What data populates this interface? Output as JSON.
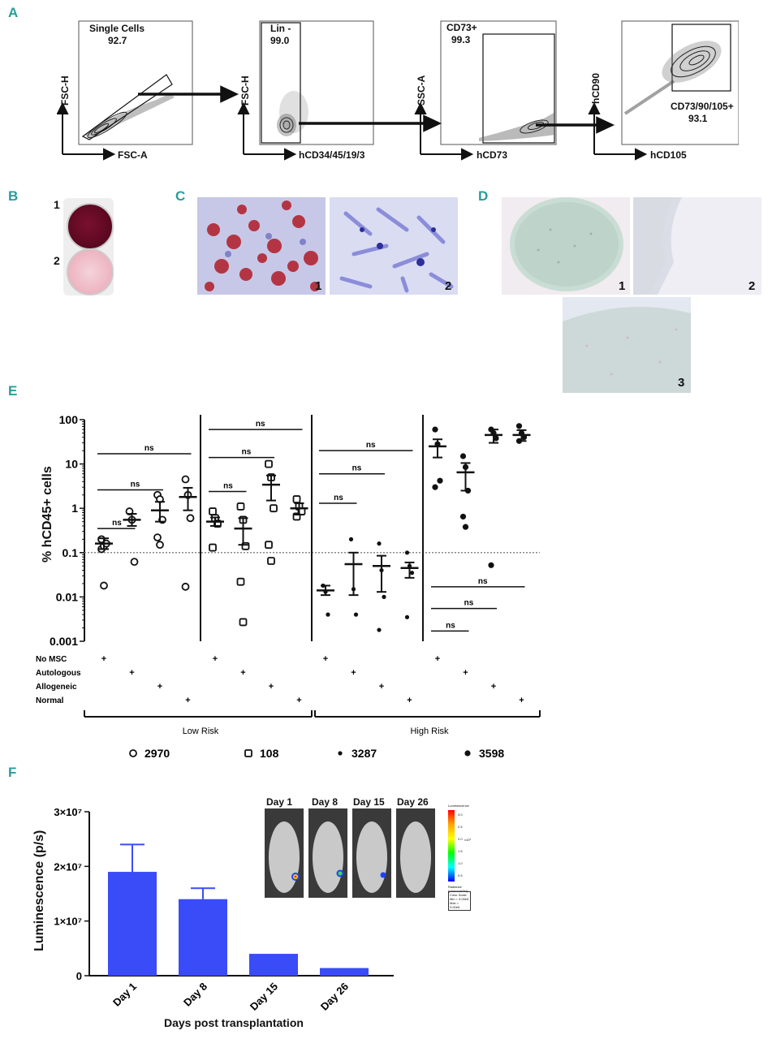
{
  "panels": {
    "A": "A",
    "B": "B",
    "C": "C",
    "D": "D",
    "E": "E",
    "F": "F"
  },
  "panelA": {
    "plots": [
      {
        "gate": "Single Cells",
        "pct": "92.7",
        "y_label": "FSC-H",
        "x_label": "FSC-A"
      },
      {
        "gate": "Lin -",
        "pct": "99.0",
        "y_label": "FSC-H",
        "x_label": "hCD34/45/19/3"
      },
      {
        "gate": "CD73+",
        "pct": "99.3",
        "y_label": "SSC-A",
        "x_label": "hCD73"
      },
      {
        "gate": "CD73/90/105+",
        "pct": "93.1",
        "y_label": "hCD90",
        "x_label": "hCD105"
      }
    ]
  },
  "panelB": {
    "labels": [
      "1",
      "2"
    ]
  },
  "panelC": {
    "labels": [
      "1",
      "2"
    ]
  },
  "panelD": {
    "labels": [
      "1",
      "2",
      "3"
    ]
  },
  "panelE": {
    "chart_data": {
      "type": "scatter",
      "ylabel": "% hCD45+ cells",
      "yscale": "log",
      "ylim": [
        0.001,
        100
      ],
      "yticks": [
        "0.001",
        "0.01",
        "0.1",
        "1",
        "10",
        "100"
      ],
      "threshold": 0.1,
      "groups": [
        {
          "patient": "2970",
          "risk": "Low Risk",
          "marker": "open-circle",
          "conditions": [
            {
              "condition": "No MSC",
              "mean": 0.16,
              "sem_low": 0.12,
              "sem_high": 0.21,
              "points": [
                0.12,
                0.14,
                0.16,
                0.2,
                0.018
              ]
            },
            {
              "condition": "Autologous",
              "mean": 0.55,
              "sem_low": 0.4,
              "sem_high": 0.75,
              "points": [
                0.85,
                0.55,
                0.062
              ]
            },
            {
              "condition": "Allogeneic",
              "mean": 0.9,
              "sem_low": 0.5,
              "sem_high": 1.4,
              "points": [
                2.0,
                1.6,
                0.55,
                0.22,
                0.15
              ]
            },
            {
              "condition": "Normal",
              "mean": 1.8,
              "sem_low": 0.9,
              "sem_high": 2.9,
              "points": [
                4.5,
                2.0,
                0.6,
                0.017
              ]
            }
          ]
        },
        {
          "patient": "108",
          "risk": "Low Risk",
          "marker": "open-square",
          "conditions": [
            {
              "condition": "No MSC",
              "mean": 0.5,
              "sem_low": 0.4,
              "sem_high": 0.62,
              "points": [
                0.85,
                0.6,
                0.45,
                0.13
              ]
            },
            {
              "condition": "Autologous",
              "mean": 0.35,
              "sem_low": 0.15,
              "sem_high": 0.6,
              "points": [
                1.1,
                0.55,
                0.14,
                0.022,
                0.0027
              ]
            },
            {
              "condition": "Allogeneic",
              "mean": 3.4,
              "sem_low": 1.5,
              "sem_high": 5.5,
              "points": [
                10,
                5,
                1.0,
                0.15,
                0.065
              ]
            },
            {
              "condition": "Normal",
              "mean": 1.0,
              "sem_low": 0.72,
              "sem_high": 1.3,
              "points": [
                1.6,
                1.1,
                0.85,
                0.65
              ]
            }
          ]
        },
        {
          "patient": "3287",
          "risk": "High Risk",
          "marker": "small-dot",
          "conditions": [
            {
              "condition": "No MSC",
              "mean": 0.014,
              "sem_low": 0.011,
              "sem_high": 0.018,
              "points": [
                0.018,
                0.013,
                0.004
              ]
            },
            {
              "condition": "Autologous",
              "mean": 0.055,
              "sem_low": 0.011,
              "sem_high": 0.1,
              "points": [
                0.2,
                0.015,
                0.004
              ]
            },
            {
              "condition": "Allogeneic",
              "mean": 0.05,
              "sem_low": 0.013,
              "sem_high": 0.085,
              "points": [
                0.16,
                0.04,
                0.01,
                0.0018
              ]
            },
            {
              "condition": "Normal",
              "mean": 0.045,
              "sem_low": 0.027,
              "sem_high": 0.06,
              "points": [
                0.1,
                0.05,
                0.035,
                0.0035
              ]
            }
          ]
        },
        {
          "patient": "3598",
          "risk": "High Risk",
          "marker": "filled-dot",
          "conditions": [
            {
              "condition": "No MSC",
              "mean": 25,
              "sem_low": 14,
              "sem_high": 36,
              "points": [
                60,
                28,
                4.2,
                3.0
              ]
            },
            {
              "condition": "Autologous",
              "mean": 6.5,
              "sem_low": 2.5,
              "sem_high": 10.5,
              "points": [
                15,
                8.5,
                2.5,
                0.65,
                0.38
              ]
            },
            {
              "condition": "Allogeneic",
              "mean": 45,
              "sem_low": 30,
              "sem_high": 60,
              "points": [
                60,
                50,
                38,
                0.052
              ]
            },
            {
              "condition": "Normal",
              "mean": 45,
              "sem_low": 33,
              "sem_high": 58,
              "points": [
                72,
                50,
                40,
                33
              ]
            }
          ]
        }
      ],
      "comparisons": [
        {
          "group": 0,
          "from": 0,
          "to": 1,
          "level": 0.35,
          "label": "ns"
        },
        {
          "group": 0,
          "from": 0,
          "to": 2,
          "level": 2.6,
          "label": "ns"
        },
        {
          "group": 0,
          "from": 0,
          "to": 3,
          "level": 17,
          "label": "ns"
        },
        {
          "group": 1,
          "from": 0,
          "to": 1,
          "level": 2.4,
          "label": "ns"
        },
        {
          "group": 1,
          "from": 0,
          "to": 2,
          "level": 14,
          "label": "ns"
        },
        {
          "group": 1,
          "from": 0,
          "to": 3,
          "level": 60,
          "label": "ns"
        },
        {
          "group": 2,
          "from": 0,
          "to": 1,
          "level": 1.3,
          "label": "ns"
        },
        {
          "group": 2,
          "from": 0,
          "to": 2,
          "level": 6,
          "label": "ns"
        },
        {
          "group": 2,
          "from": 0,
          "to": 3,
          "level": 20,
          "label": "ns"
        },
        {
          "group": 3,
          "from": 0,
          "to": 3,
          "level": 0.017,
          "label": "ns"
        },
        {
          "group": 3,
          "from": 0,
          "to": 2,
          "level": 0.0055,
          "label": "ns"
        },
        {
          "group": 3,
          "from": 0,
          "to": 1,
          "level": 0.0017,
          "label": "ns"
        }
      ],
      "row_labels": [
        "No MSC",
        "Autologous",
        "Allogeneic",
        "Normal"
      ],
      "plus": "+",
      "risk_labels": [
        "Low Risk",
        "High Risk"
      ],
      "legend": [
        {
          "marker": "open-circle",
          "label": "2970"
        },
        {
          "marker": "open-square",
          "label": "108"
        },
        {
          "marker": "small-dot",
          "label": "3287"
        },
        {
          "marker": "filled-dot",
          "label": "3598"
        }
      ]
    }
  },
  "panelF": {
    "chart_data": {
      "type": "bar",
      "categories": [
        "Day 1",
        "Day 8",
        "Day 15",
        "Day 26"
      ],
      "values": [
        19000000,
        14000000,
        4000000,
        1400000
      ],
      "errors": [
        5000000,
        2000000,
        0,
        0
      ],
      "ylim": [
        0,
        30000000
      ],
      "yticks": [
        "0",
        "1×10⁷",
        "2×10⁷",
        "3×10⁷"
      ],
      "ylabel": "Luminescence (p/s)",
      "xlabel": "Days post transplantation",
      "bar_color": "#3a4cf7"
    },
    "inset": {
      "days": [
        "Day 1",
        "Day 8",
        "Day 15",
        "Day 26"
      ],
      "scale_title": "Luminescence",
      "scale_ticks": [
        "3.0",
        "2.5",
        "2.0",
        "1.5",
        "1.0",
        "0.5"
      ],
      "scale_unit": "x10⁶",
      "radiance_note": "Radiance (p/sec/cm²/sr)",
      "color_scale_label": "Color Scale",
      "min_label": "Min = 3.00e5",
      "max_label": "Max = 3.00e6"
    }
  }
}
